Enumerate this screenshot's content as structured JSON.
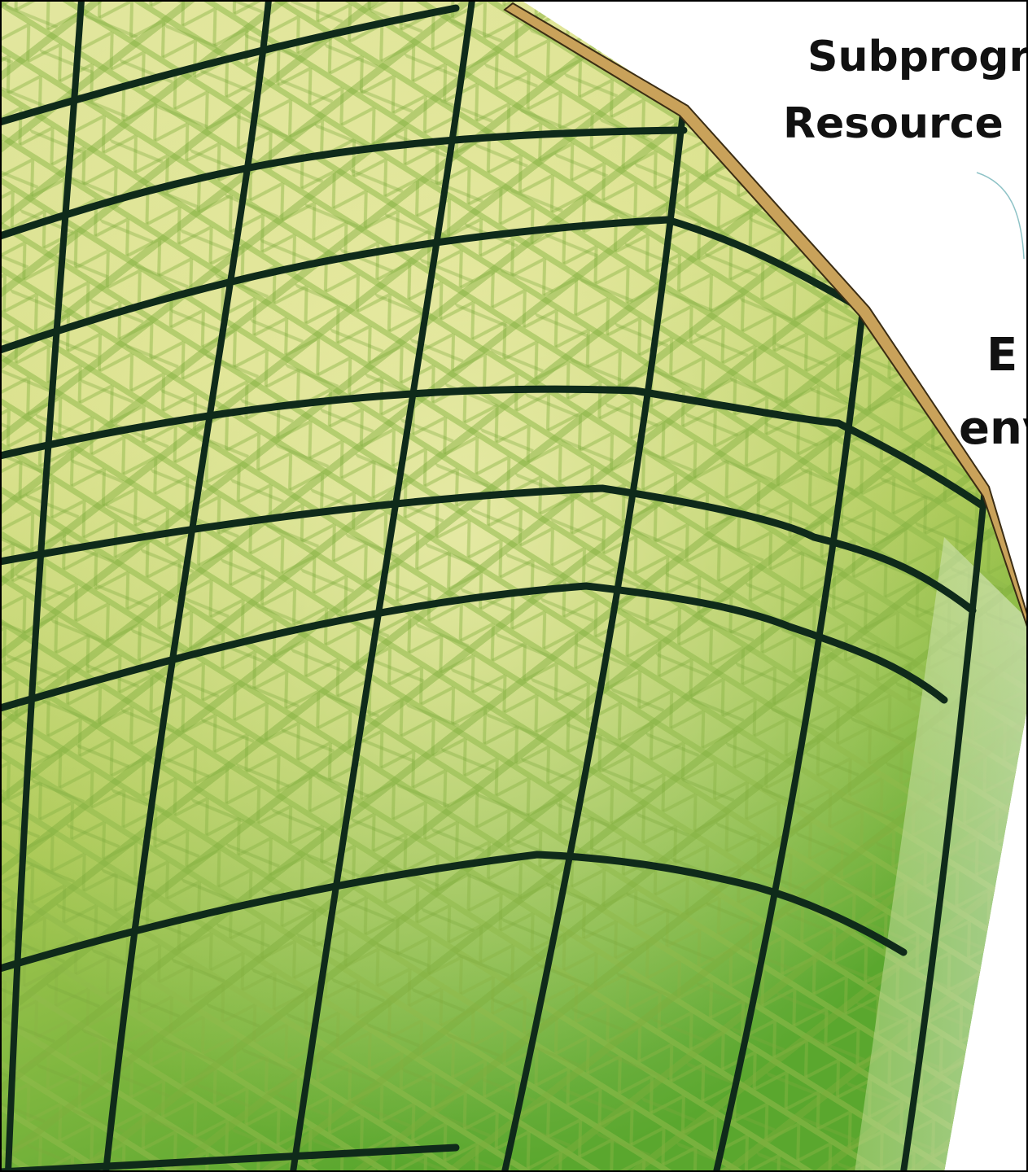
{
  "slide": {
    "title_line1": "Subprogr",
    "title_line2": "Resource",
    "subtitle_line1": "E",
    "subtitle_line2": "env"
  },
  "image": {
    "description": "green glass dome building facade",
    "colors": {
      "glass_light": "#d9e38a",
      "glass_mid": "#a6c94f",
      "glass_dark": "#58a82c",
      "frame": "#0f2a1a",
      "roof_edge": "#c9a25a",
      "white": "#ffffff"
    }
  }
}
